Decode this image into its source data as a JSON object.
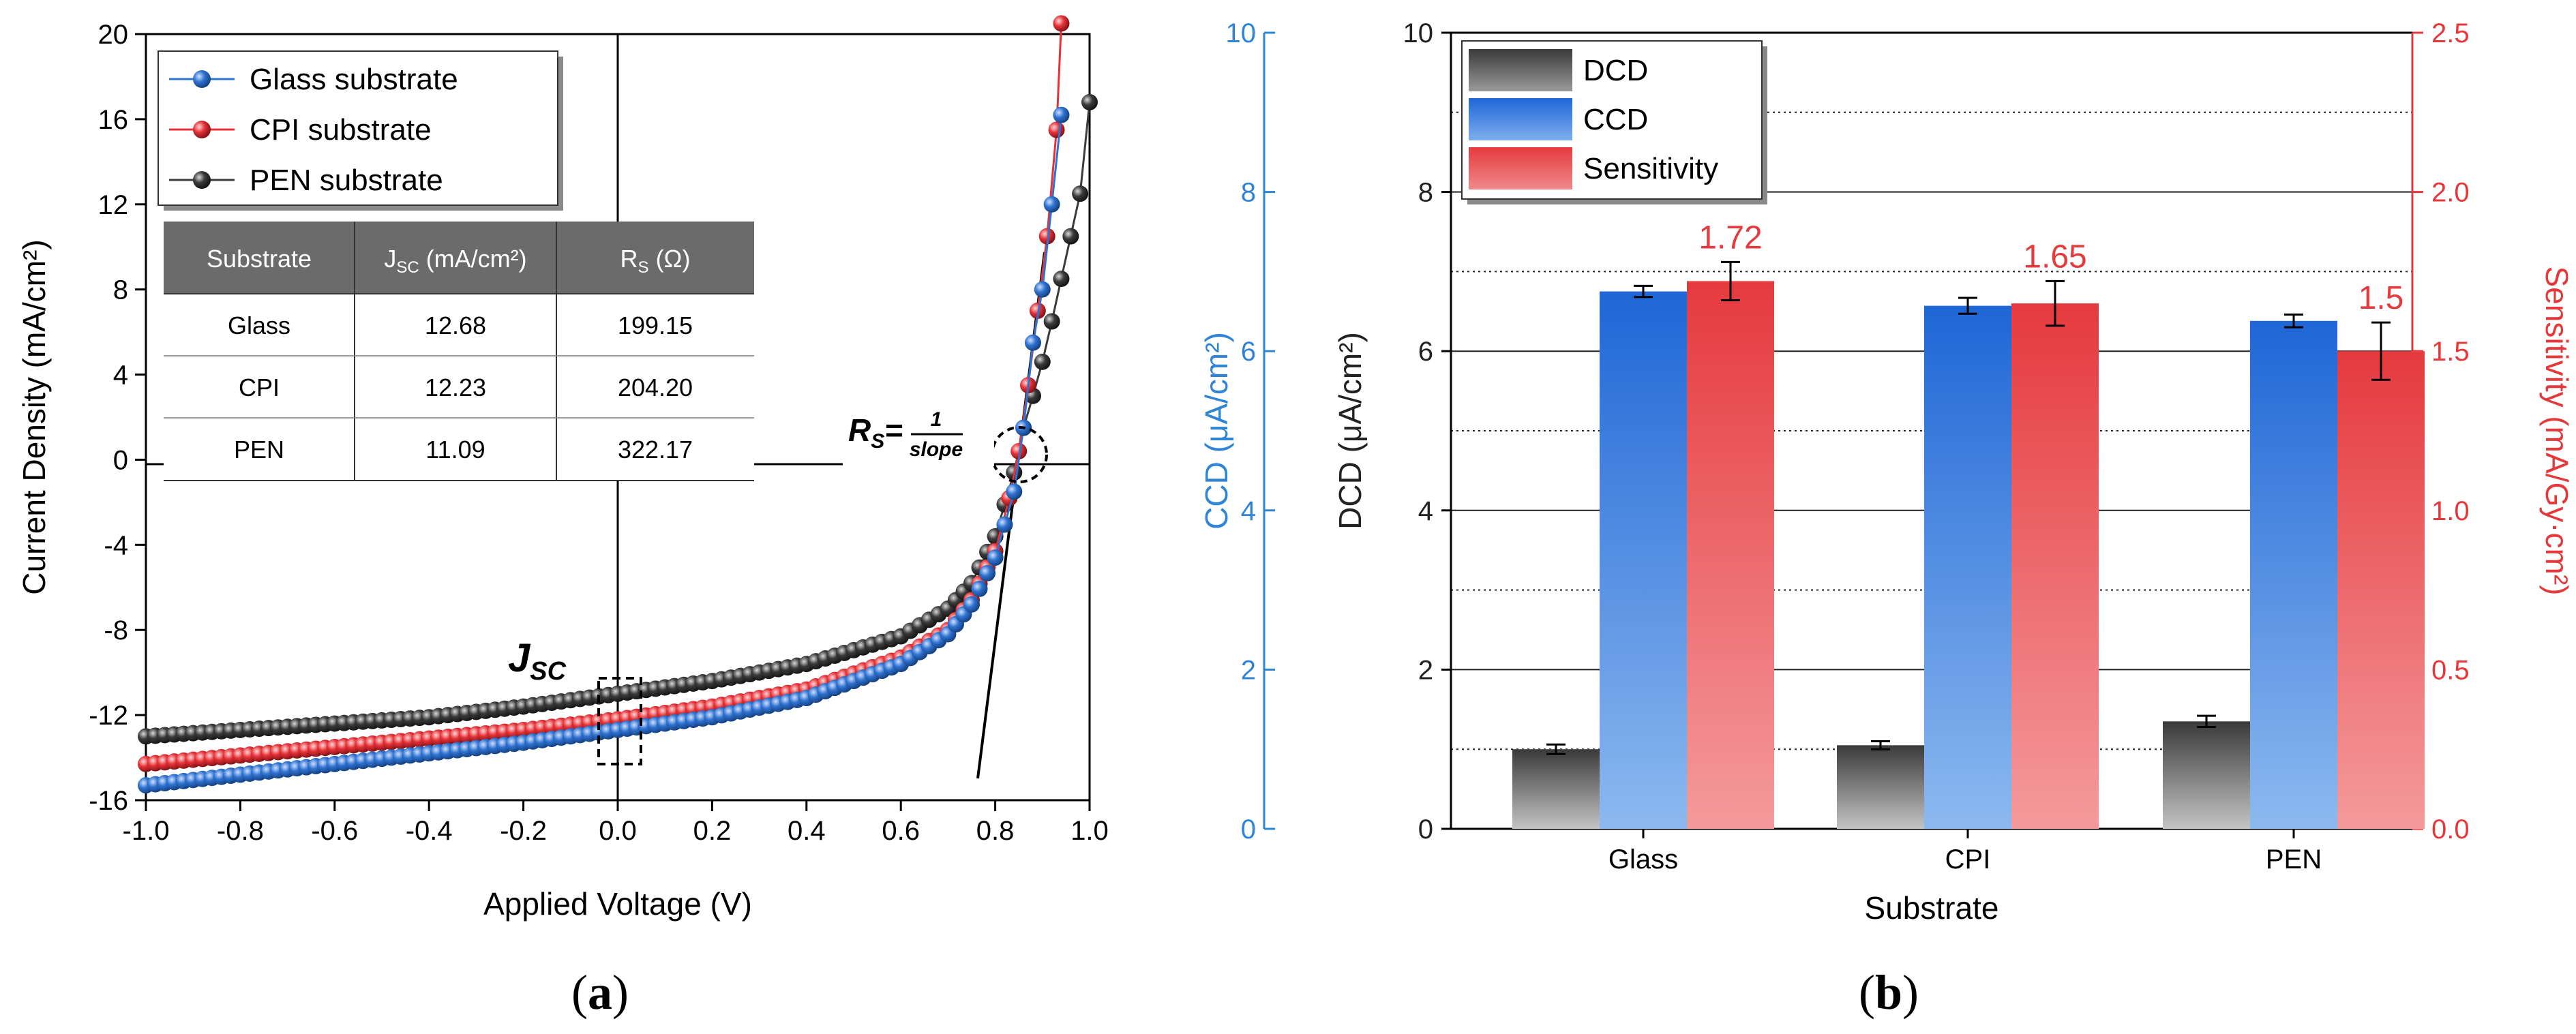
{
  "colors": {
    "glass": "#2f73d1",
    "cpi": "#e53238",
    "pen": "#3b3b3b",
    "ccd_axis": "#2f84d6",
    "sens_axis": "#e5383b",
    "dcd": "#4a4a4a",
    "ccd": "#2f6fd8",
    "sens": "#e53a3e",
    "table_header": "#6b6b6b"
  },
  "panel_a": {
    "label": "a",
    "jsc_annotation_main": "J",
    "jsc_annotation_sub": "SC",
    "rs_lhs_main": "R",
    "rs_lhs_sub": "S",
    "rs_numerator": "1",
    "rs_denominator": "slope",
    "table": {
      "headers": [
        {
          "main": "Substrate",
          "sub": "",
          "suffix": ""
        },
        {
          "main": "J",
          "sub": "SC",
          "suffix": " (mA/cm²)"
        },
        {
          "main": "R",
          "sub": "S",
          "suffix": " (Ω)"
        }
      ],
      "rows": [
        [
          "Glass",
          "12.68",
          "199.15"
        ],
        [
          "CPI",
          "12.23",
          "204.20"
        ],
        [
          "PEN",
          "11.09",
          "322.17"
        ]
      ]
    }
  },
  "panel_b": {
    "label": "b",
    "ccd_axis_label": "CCD (μA/cm²)",
    "sens_axis_label": "Sensitivity (mA/Gy·cm²)"
  },
  "chart_data": [
    {
      "type": "scatter",
      "title": "",
      "xlabel": "Applied Voltage (V)",
      "ylabel": "Current Density (mA/cm²)",
      "xlim": [
        -1.0,
        1.0
      ],
      "ylim": [
        -16,
        20
      ],
      "xticks": [
        -1.0,
        -0.8,
        -0.6,
        -0.4,
        -0.2,
        0.0,
        0.2,
        0.4,
        0.6,
        0.8,
        1.0
      ],
      "xtick_labels": [
        "-1.0",
        "-0.8",
        "-0.6",
        "-0.4",
        "-0.2",
        "0.0",
        "0.2",
        "0.4",
        "0.6",
        "0.8",
        "1.0"
      ],
      "yticks": [
        -16,
        -12,
        -8,
        -4,
        0,
        4,
        8,
        12,
        16,
        20
      ],
      "ytick_labels": [
        "-16",
        "-12",
        "-8",
        "-4",
        "0",
        "4",
        "8",
        "12",
        "16",
        "20"
      ],
      "legend_position": "top-left",
      "series": [
        {
          "name": "Glass substrate",
          "color": "#2f73d1",
          "x": [
            -1.0,
            -0.8,
            -0.6,
            -0.4,
            -0.2,
            0.0,
            0.2,
            0.4,
            0.6,
            0.7,
            0.75,
            0.8,
            0.84,
            0.86,
            0.88,
            0.9,
            0.92,
            0.94
          ],
          "y": [
            -15.3,
            -14.8,
            -14.3,
            -13.8,
            -13.3,
            -12.7,
            -12.1,
            -11.2,
            -9.6,
            -8.2,
            -6.8,
            -4.6,
            -1.5,
            1.5,
            5.5,
            8.0,
            12.0,
            16.2
          ]
        },
        {
          "name": "CPI substrate",
          "color": "#e53238",
          "x": [
            -1.0,
            -0.8,
            -0.6,
            -0.4,
            -0.2,
            0.0,
            0.2,
            0.4,
            0.6,
            0.7,
            0.75,
            0.8,
            0.83,
            0.85,
            0.87,
            0.89,
            0.91,
            0.93,
            0.94
          ],
          "y": [
            -14.3,
            -13.9,
            -13.5,
            -13.1,
            -12.7,
            -12.2,
            -11.6,
            -10.8,
            -9.3,
            -8.0,
            -6.6,
            -4.3,
            -1.8,
            0.4,
            3.5,
            7.0,
            10.5,
            15.5,
            20.5
          ]
        },
        {
          "name": "PEN substrate",
          "color": "#3b3b3b",
          "x": [
            -1.0,
            -0.8,
            -0.6,
            -0.4,
            -0.2,
            0.0,
            0.2,
            0.4,
            0.6,
            0.7,
            0.75,
            0.8,
            0.84,
            0.86,
            0.88,
            0.9,
            0.92,
            0.94,
            0.96,
            0.98,
            1.0
          ],
          "y": [
            -13.0,
            -12.7,
            -12.4,
            -12.1,
            -11.6,
            -11.0,
            -10.4,
            -9.6,
            -8.3,
            -7.0,
            -5.8,
            -3.6,
            -0.6,
            1.5,
            3.0,
            4.6,
            6.5,
            8.5,
            10.5,
            12.5,
            16.8
          ]
        }
      ]
    },
    {
      "type": "bar",
      "title": "",
      "xlabel": "Substrate",
      "ylabel": "DCD (μA/cm²)",
      "y2label": "Sensitivity (mA/Gy·cm²)",
      "y3label": "CCD (μA/cm²)",
      "categories": [
        "Glass",
        "CPI",
        "PEN"
      ],
      "ylim": [
        0,
        10
      ],
      "y2lim": [
        0.0,
        2.5
      ],
      "yticks": [
        0,
        2,
        4,
        6,
        8,
        10
      ],
      "ytick_labels": [
        "0",
        "2",
        "4",
        "6",
        "8",
        "10"
      ],
      "y2ticks": [
        0.0,
        0.5,
        1.0,
        1.5,
        2.0,
        2.5
      ],
      "y2tick_labels": [
        "0.0",
        "0.5",
        "1.0",
        "1.5",
        "2.0",
        "2.5"
      ],
      "legend_position": "top-left",
      "series": [
        {
          "name": "DCD",
          "axis": "left",
          "values": [
            1.0,
            1.05,
            1.35
          ],
          "errors": [
            0.06,
            0.05,
            0.07
          ]
        },
        {
          "name": "CCD",
          "axis": "left",
          "values": [
            6.75,
            6.57,
            6.38
          ],
          "errors": [
            0.07,
            0.1,
            0.08
          ]
        },
        {
          "name": "Sensitivity",
          "axis": "right",
          "values": [
            1.72,
            1.65,
            1.5
          ],
          "errors": [
            0.06,
            0.07,
            0.09
          ],
          "data_labels": [
            "1.72",
            "1.65",
            "1.5"
          ]
        }
      ]
    }
  ]
}
